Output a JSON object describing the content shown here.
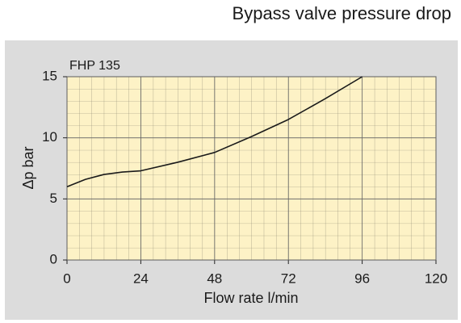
{
  "chart_data": {
    "type": "line",
    "title": "Bypass valve pressure drop",
    "x_label": "Flow rate l/min",
    "y_label": "Δp bar",
    "x": [
      0,
      6,
      12,
      18,
      24,
      36,
      48,
      60,
      72,
      84,
      96
    ],
    "series": [
      {
        "name": "FHP 135",
        "color": "#1a1a1a",
        "values": [
          6,
          6.6,
          7.0,
          7.2,
          7.3,
          8.0,
          8.8,
          10.1,
          11.5,
          13.2,
          15
        ]
      }
    ],
    "xlim": [
      0,
      120
    ],
    "xticks": [
      0,
      24,
      48,
      72,
      96,
      120
    ],
    "ylim": [
      0,
      15
    ],
    "yticks": [
      0,
      5,
      10,
      15
    ],
    "grid": true
  }
}
